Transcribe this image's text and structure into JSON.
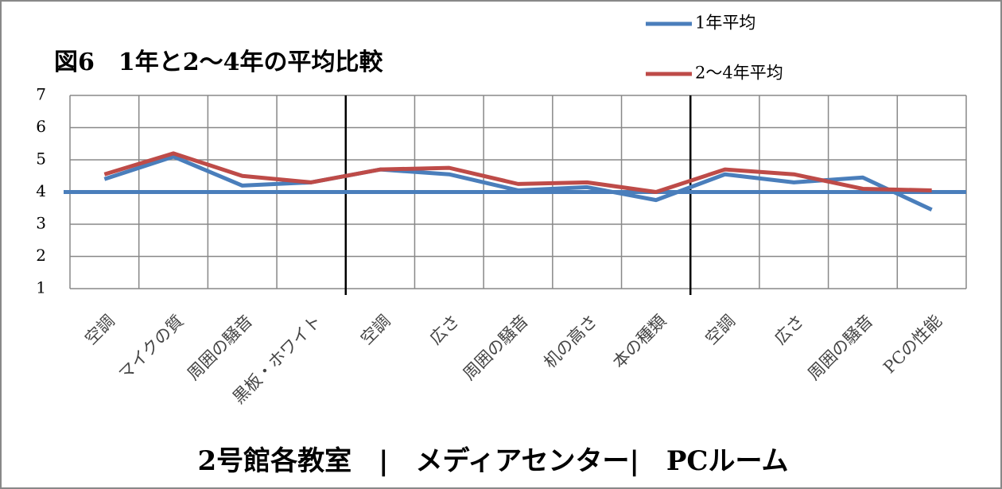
{
  "chart_data": {
    "type": "line",
    "title": "図6　1年と2～4年の平均比較",
    "footer": "2号館各教室　|　メディアセンター|　PCルーム",
    "categories": [
      "空調",
      "マイクの質",
      "周囲の騒音",
      "黒板・ホワイト",
      "空調",
      "広さ",
      "周囲の騒音",
      "机の高さ",
      "本の種類",
      "空調",
      "広さ",
      "周囲の騒音",
      "PCの性能"
    ],
    "series": [
      {
        "name": "1年平均",
        "color": "#4a7ebb",
        "values": [
          4.4,
          5.1,
          4.2,
          4.3,
          4.7,
          4.55,
          4.05,
          4.15,
          3.75,
          4.55,
          4.3,
          4.45,
          3.45
        ]
      },
      {
        "name": "2～4年平均",
        "color": "#be4b48",
        "values": [
          4.55,
          5.2,
          4.5,
          4.3,
          4.7,
          4.75,
          4.25,
          4.3,
          4.0,
          4.7,
          4.55,
          4.1,
          4.05
        ]
      }
    ],
    "reference_line": 4,
    "reference_color": "#4a7ebb",
    "ylim": [
      1,
      7
    ],
    "yticks": [
      1,
      2,
      3,
      4,
      5,
      6,
      7
    ],
    "grid": true
  }
}
